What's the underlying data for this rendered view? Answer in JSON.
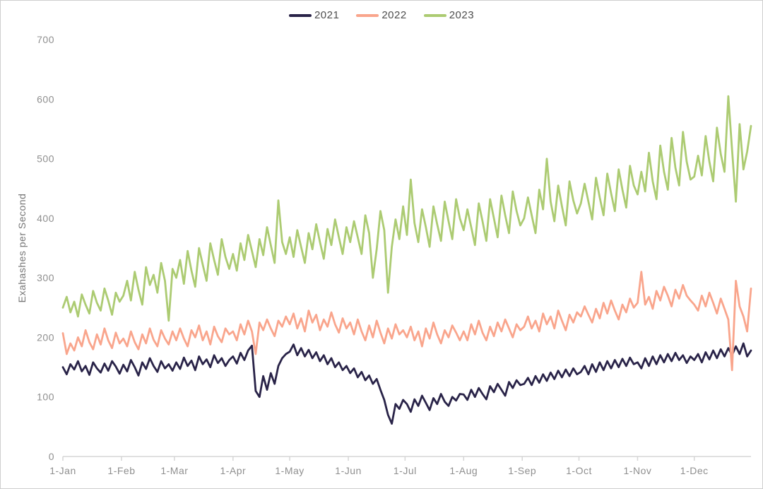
{
  "colors": {
    "background": "#ffffff",
    "border": "#cfcfcf",
    "axis_line": "#d6d6d6",
    "tick_text": "#8f8f8f",
    "y_title_text": "#767676",
    "legend_text": "#4d4d4d",
    "series_2021": "#292348",
    "series_2022": "#f9a58c",
    "series_2023": "#accb72"
  },
  "chart_data": {
    "type": "line",
    "title": "",
    "xlabel": "",
    "ylabel": "Exahashes per Second",
    "ylim": [
      0,
      700
    ],
    "grid": false,
    "legend_position": "top-center",
    "y_ticks": [
      0,
      100,
      200,
      300,
      400,
      500,
      600,
      700
    ],
    "x_tick_labels": [
      "1-Jan",
      "1-Feb",
      "1-Mar",
      "1-Apr",
      "1-May",
      "1-Jun",
      "1-Jul",
      "1-Aug",
      "1-Sep",
      "1-Oct",
      "1-Nov",
      "1-Dec"
    ],
    "x_tick_days": [
      0,
      31,
      59,
      90,
      120,
      151,
      181,
      212,
      243,
      273,
      304,
      334
    ],
    "x_unit": "day of year",
    "day_step": 2,
    "series": [
      {
        "name": "2021",
        "color": "#292348",
        "values": [
          150,
          138,
          155,
          146,
          160,
          143,
          152,
          137,
          158,
          148,
          141,
          156,
          144,
          160,
          151,
          139,
          154,
          143,
          162,
          150,
          136,
          158,
          147,
          165,
          152,
          142,
          160,
          148,
          155,
          144,
          158,
          147,
          166,
          152,
          161,
          145,
          168,
          155,
          163,
          150,
          170,
          157,
          165,
          152,
          162,
          168,
          156,
          174,
          162,
          178,
          186,
          110,
          100,
          135,
          112,
          140,
          122,
          152,
          165,
          172,
          176,
          188,
          170,
          182,
          168,
          179,
          165,
          175,
          160,
          170,
          155,
          165,
          150,
          158,
          145,
          152,
          140,
          148,
          133,
          142,
          128,
          136,
          122,
          130,
          112,
          95,
          70,
          55,
          88,
          80,
          95,
          88,
          75,
          96,
          85,
          102,
          90,
          78,
          98,
          88,
          105,
          92,
          85,
          100,
          94,
          105,
          104,
          95,
          112,
          100,
          115,
          105,
          96,
          118,
          108,
          122,
          112,
          102,
          125,
          115,
          128,
          120,
          122,
          132,
          120,
          135,
          124,
          138,
          127,
          141,
          130,
          144,
          133,
          146,
          135,
          148,
          138,
          142,
          152,
          138,
          155,
          142,
          158,
          145,
          160,
          148,
          162,
          150,
          164,
          152,
          166,
          155,
          158,
          148,
          165,
          152,
          168,
          155,
          170,
          158,
          172,
          160,
          174,
          162,
          170,
          157,
          168,
          162,
          172,
          158,
          175,
          163,
          178,
          165,
          180,
          168,
          182,
          170,
          185,
          172,
          190,
          168,
          178
        ]
      },
      {
        "name": "2022",
        "color": "#f9a58c",
        "values": [
          207,
          172,
          190,
          178,
          200,
          185,
          212,
          192,
          180,
          205,
          188,
          215,
          195,
          182,
          208,
          190,
          198,
          185,
          210,
          192,
          180,
          205,
          190,
          215,
          196,
          185,
          212,
          198,
          188,
          210,
          195,
          215,
          198,
          185,
          212,
          200,
          220,
          195,
          210,
          188,
          218,
          202,
          192,
          215,
          205,
          210,
          195,
          222,
          205,
          228,
          210,
          172,
          225,
          212,
          230,
          215,
          202,
          228,
          218,
          235,
          222,
          240,
          215,
          232,
          210,
          245,
          225,
          238,
          212,
          230,
          218,
          242,
          222,
          208,
          232,
          215,
          225,
          205,
          230,
          210,
          195,
          220,
          200,
          228,
          208,
          190,
          215,
          198,
          222,
          205,
          212,
          200,
          218,
          195,
          210,
          185,
          215,
          198,
          225,
          205,
          190,
          212,
          200,
          220,
          208,
          195,
          210,
          195,
          222,
          205,
          228,
          208,
          195,
          218,
          202,
          225,
          210,
          230,
          215,
          200,
          222,
          212,
          218,
          235,
          215,
          228,
          210,
          240,
          222,
          235,
          215,
          245,
          228,
          212,
          238,
          225,
          242,
          235,
          252,
          238,
          225,
          248,
          232,
          258,
          240,
          262,
          245,
          230,
          255,
          242,
          265,
          250,
          258,
          310,
          255,
          268,
          248,
          278,
          262,
          285,
          270,
          252,
          280,
          265,
          288,
          270,
          262,
          255,
          245,
          270,
          252,
          275,
          258,
          240,
          265,
          248,
          230,
          145,
          295,
          252,
          235,
          210,
          282
        ]
      },
      {
        "name": "2023",
        "color": "#accb72",
        "values": [
          250,
          268,
          242,
          260,
          235,
          272,
          255,
          240,
          278,
          258,
          245,
          282,
          262,
          238,
          275,
          260,
          270,
          295,
          262,
          310,
          280,
          255,
          318,
          288,
          305,
          275,
          325,
          295,
          228,
          315,
          300,
          330,
          290,
          345,
          312,
          285,
          350,
          322,
          295,
          358,
          330,
          305,
          365,
          335,
          315,
          340,
          312,
          358,
          330,
          372,
          345,
          318,
          365,
          338,
          385,
          355,
          325,
          430,
          360,
          340,
          368,
          335,
          380,
          352,
          325,
          375,
          348,
          390,
          360,
          332,
          382,
          355,
          398,
          368,
          340,
          385,
          360,
          395,
          368,
          340,
          405,
          375,
          300,
          348,
          412,
          380,
          275,
          352,
          398,
          365,
          420,
          372,
          465,
          392,
          360,
          415,
          385,
          352,
          420,
          390,
          362,
          428,
          395,
          365,
          432,
          400,
          380,
          415,
          385,
          355,
          425,
          395,
          362,
          432,
          400,
          368,
          438,
          405,
          375,
          445,
          412,
          388,
          400,
          435,
          405,
          375,
          448,
          415,
          500,
          428,
          395,
          455,
          420,
          388,
          462,
          430,
          408,
          425,
          458,
          428,
          398,
          468,
          435,
          405,
          475,
          442,
          412,
          482,
          448,
          418,
          488,
          455,
          440,
          478,
          445,
          510,
          462,
          432,
          522,
          478,
          448,
          535,
          485,
          455,
          545,
          495,
          465,
          470,
          505,
          472,
          538,
          495,
          462,
          552,
          508,
          478,
          605,
          515,
          428,
          558,
          482,
          512,
          555
        ]
      }
    ]
  }
}
